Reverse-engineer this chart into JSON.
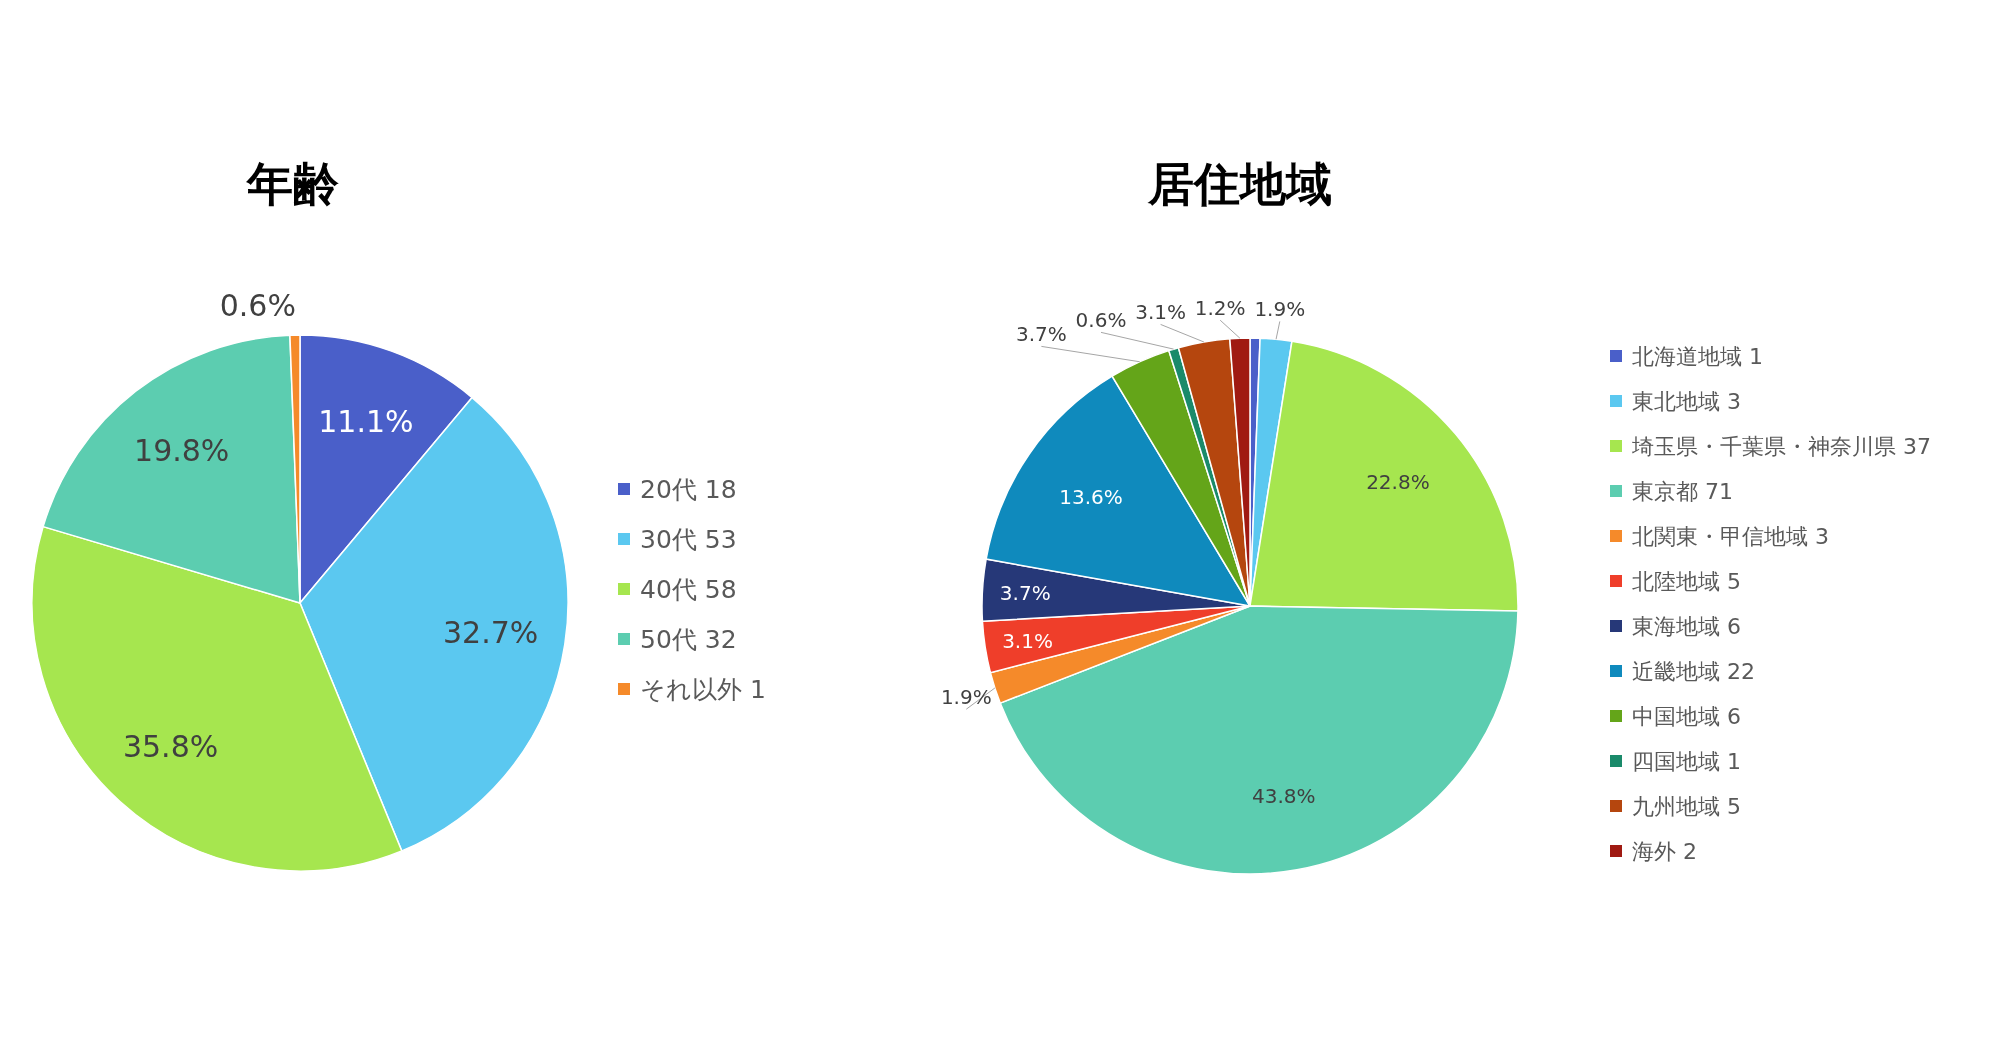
{
  "chart_data": [
    {
      "type": "pie",
      "title": "年齢",
      "categories": [
        "20代 18",
        "30代 53",
        "40代 58",
        "50代 32",
        "それ以外 1"
      ],
      "values": [
        11.1,
        32.7,
        35.8,
        19.8,
        0.6
      ],
      "colors": [
        "#4a5fc9",
        "#5bc8f0",
        "#a6e64f",
        "#5ccdb0",
        "#f58a2a"
      ],
      "value_labels": [
        "11.1%",
        "32.7%",
        "35.8%",
        "19.8%",
        "0.6%"
      ],
      "legend": "right"
    },
    {
      "type": "pie",
      "title": "居住地域",
      "categories": [
        "北海道地域 1",
        "東北地域 3",
        "埼玉県・千葉県・神奈川県 37",
        "東京都 71",
        "北関東・甲信地域 3",
        "北陸地域 5",
        "東海地域 6",
        "近畿地域 22",
        "中国地域 6",
        "四国地域 1",
        "九州地域 5",
        "海外 2"
      ],
      "values": [
        0.6,
        1.9,
        22.8,
        43.8,
        1.9,
        3.1,
        3.7,
        13.6,
        3.7,
        0.6,
        3.1,
        1.2
      ],
      "colors": [
        "#4a5fc9",
        "#5bc8f0",
        "#a6e64f",
        "#5ccdb0",
        "#f58a2a",
        "#ef3e2a",
        "#263878",
        "#0f8abd",
        "#64a519",
        "#1a8a6a",
        "#b5460e",
        "#a01a12"
      ],
      "value_labels": [
        null,
        "1.9%",
        "22.8%",
        "43.8%",
        "1.9%",
        "3.1%",
        "3.7%",
        "13.6%",
        "3.7%",
        "0.6%",
        "3.1%",
        "1.2%"
      ],
      "legend": "right"
    }
  ]
}
